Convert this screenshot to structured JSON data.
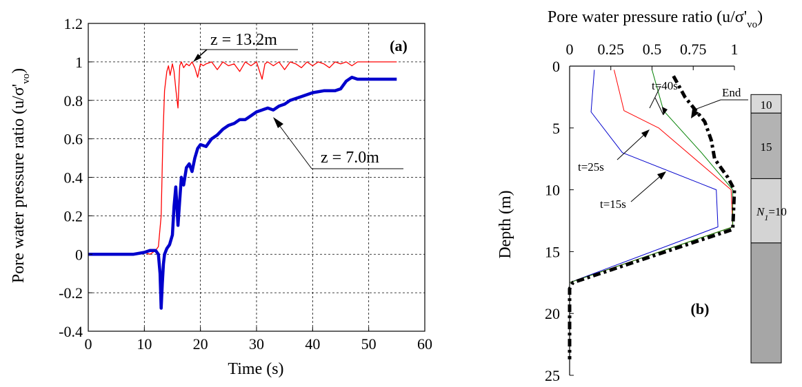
{
  "chart_data": [
    {
      "type": "line",
      "panel_label": "(a)",
      "xlabel": "Time (s)",
      "ylabel_main": "Pore water pressure ratio (u/σ'",
      "ylabel_sub": "vo",
      "ylabel_close": ")",
      "xlim": [
        0,
        60
      ],
      "ylim": [
        -0.4,
        1.2
      ],
      "x_ticks": [
        "0",
        "10",
        "20",
        "30",
        "40",
        "50",
        "60"
      ],
      "y_ticks": [
        "-0.4",
        "-0.2",
        "0",
        "0.2",
        "0.4",
        "0.6",
        "0.8",
        "1",
        "1.2"
      ],
      "grid": true,
      "colors": {
        "shallow": "#ff0000",
        "deep": "#0000cc"
      },
      "annotations": {
        "shallow": "z = 13.2m",
        "deep": "z = 7.0m"
      },
      "series": [
        {
          "name": "z = 13.2m",
          "x": [
            0,
            8,
            10,
            11,
            12,
            12.5,
            13,
            13.3,
            13.6,
            14,
            14.3,
            14.6,
            15,
            15.3,
            15.6,
            16,
            16.3,
            16.6,
            17,
            17.5,
            18,
            18.5,
            19,
            19.5,
            20,
            20.5,
            21,
            22,
            23,
            24,
            25,
            26,
            27,
            28,
            29,
            30,
            31,
            31.5,
            32,
            33,
            34,
            35,
            36,
            37,
            38,
            39,
            40,
            41,
            42,
            43,
            44,
            45,
            46,
            47,
            48,
            50,
            52,
            55
          ],
          "y": [
            0,
            0,
            0.01,
            0.0,
            0.02,
            0.04,
            0.2,
            0.6,
            0.85,
            0.95,
            0.98,
            0.93,
            0.99,
            0.95,
            0.86,
            0.76,
            0.98,
            1.0,
            0.97,
            0.99,
            0.98,
            1.0,
            0.97,
            0.92,
            0.99,
            0.98,
            0.99,
            1.0,
            0.96,
            1.0,
            0.98,
            0.99,
            0.95,
            1.0,
            0.98,
            1.0,
            0.91,
            0.99,
            1.0,
            0.98,
            1.0,
            0.96,
            1.0,
            0.99,
            0.97,
            1.0,
            0.98,
            1.0,
            0.99,
            0.97,
            1.0,
            0.99,
            1.0,
            0.98,
            1.0,
            1.0,
            1.0,
            1.0
          ]
        },
        {
          "name": "z = 7.0m",
          "x": [
            0,
            8,
            10,
            11,
            12,
            12.5,
            12.8,
            13,
            13.2,
            13.4,
            13.6,
            14,
            14.5,
            15,
            15.3,
            15.6,
            16,
            16.3,
            16.6,
            17,
            17.5,
            18,
            18.5,
            19,
            19.5,
            20,
            21,
            22,
            23,
            24,
            25,
            26,
            27,
            28,
            29,
            30,
            31,
            32,
            33,
            34,
            35,
            36,
            38,
            40,
            42,
            44,
            45,
            46,
            47,
            48,
            50,
            52,
            55
          ],
          "y": [
            0,
            0,
            0.01,
            0.02,
            0.02,
            0.0,
            -0.1,
            -0.28,
            -0.15,
            -0.05,
            0.0,
            0.03,
            0.05,
            0.1,
            0.25,
            0.35,
            0.15,
            0.28,
            0.4,
            0.36,
            0.45,
            0.47,
            0.43,
            0.5,
            0.55,
            0.57,
            0.56,
            0.6,
            0.62,
            0.65,
            0.67,
            0.68,
            0.7,
            0.7,
            0.72,
            0.74,
            0.75,
            0.76,
            0.75,
            0.77,
            0.78,
            0.8,
            0.82,
            0.84,
            0.85,
            0.85,
            0.86,
            0.9,
            0.92,
            0.91,
            0.91,
            0.91,
            0.91
          ]
        }
      ]
    },
    {
      "type": "line",
      "panel_label": "(b)",
      "xlabel_main": "Pore water pressure ratio (u/σ'",
      "xlabel_sub": "vo",
      "xlabel_close": ")",
      "ylabel": "Depth (m)",
      "xlim": [
        0,
        1
      ],
      "ylim": [
        25,
        0
      ],
      "x_ticks": [
        "0",
        "0.25",
        "0.5",
        "0.75",
        "1"
      ],
      "y_ticks": [
        "0",
        "5",
        "10",
        "15",
        "20",
        "25"
      ],
      "grid": false,
      "profile_labels": [
        "t=15s",
        "t=25s",
        "t=40s",
        "End"
      ],
      "series": [
        {
          "name": "t=15s",
          "color": "#0000cc",
          "x": [
            0.15,
            0.13,
            0.32,
            0.89,
            0.9,
            0.0,
            0.0
          ],
          "y": [
            0.3,
            3.7,
            7.0,
            10.0,
            13.0,
            17.5,
            23.7
          ]
        },
        {
          "name": "t=25s",
          "color": "#ff0000",
          "x": [
            0.27,
            0.33,
            0.54,
            0.98,
            0.99,
            0.0,
            0.0
          ],
          "y": [
            0.3,
            3.6,
            5.0,
            10.0,
            13.0,
            17.5,
            23.7
          ]
        },
        {
          "name": "t=40s",
          "color": "#008000",
          "x": [
            0.5,
            0.57,
            0.8,
            0.99,
            0.99,
            0.0,
            0.0
          ],
          "y": [
            0.3,
            3.6,
            7.0,
            10.0,
            13.0,
            17.5,
            23.7
          ]
        },
        {
          "name": "End",
          "color": "#000000",
          "x": [
            0.63,
            0.7,
            0.82,
            0.86,
            0.88,
            0.96,
            1.0,
            0.99,
            0.02,
            0.0,
            0.0
          ],
          "y": [
            0.8,
            2.5,
            4.5,
            6.0,
            7.5,
            9.0,
            10.0,
            13.2,
            17.5,
            18.0,
            23.7
          ]
        }
      ],
      "soil_column": [
        {
          "label": "10",
          "from": 2.3,
          "to": 3.8,
          "color": "#d9d9d9"
        },
        {
          "label": "15",
          "from": 3.8,
          "to": 9.1,
          "color": "#b3b3b3"
        },
        {
          "label": "N",
          "sub": "1",
          "suffix": "=10",
          "from": 9.1,
          "to": 14.3,
          "color": "#d4d4d4"
        },
        {
          "label": "",
          "from": 14.3,
          "to": 24.0,
          "color": "#a6a6a6"
        }
      ]
    }
  ]
}
